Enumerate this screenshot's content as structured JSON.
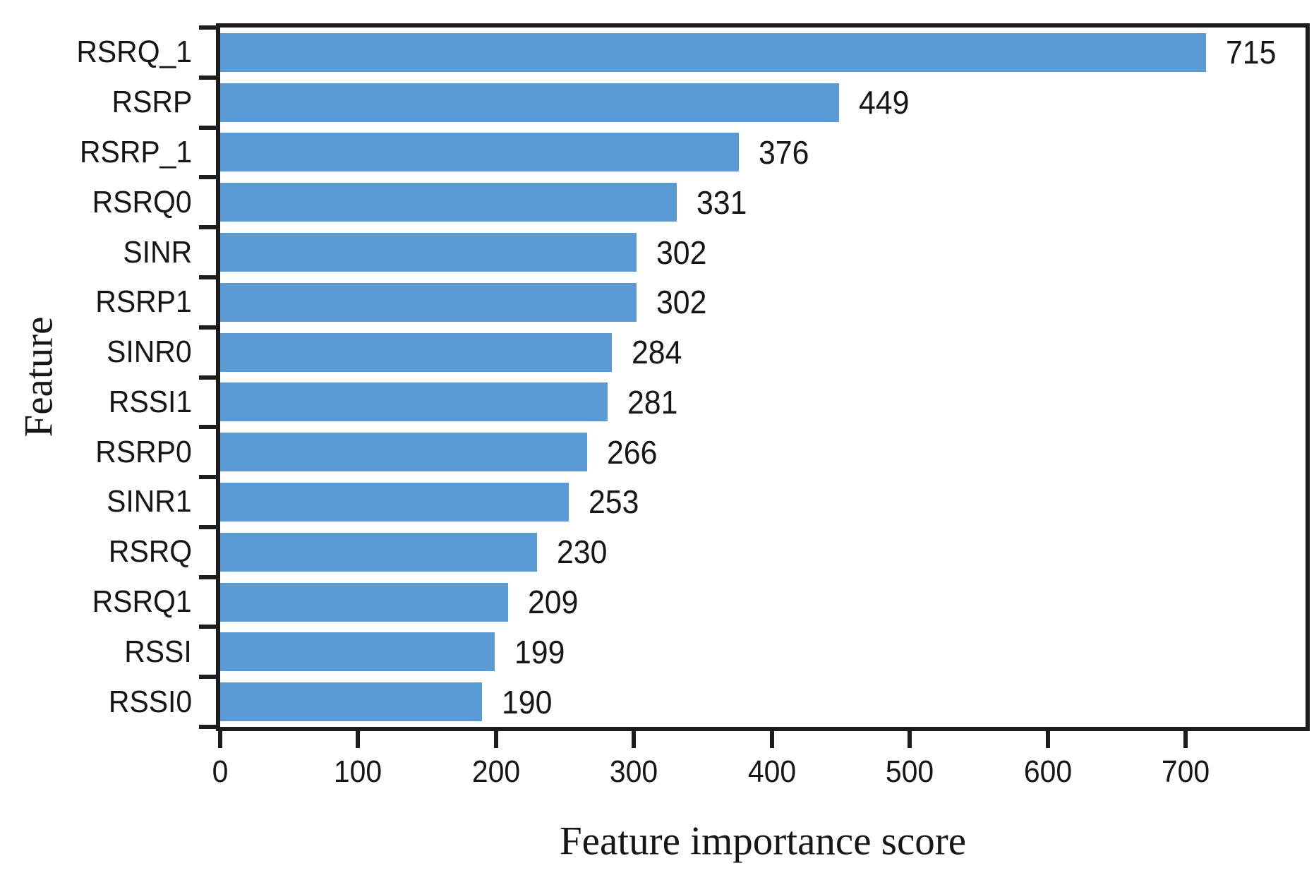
{
  "chart_data": {
    "type": "bar",
    "orientation": "horizontal",
    "title": "",
    "xlabel": "Feature importance score",
    "ylabel": "Feature",
    "categories": [
      "RSRQ_1",
      "RSRP",
      "RSRP_1",
      "RSRQ0",
      "SINR",
      "RSRP1",
      "SINR0",
      "RSSI1",
      "RSRP0",
      "SINR1",
      "RSRQ",
      "RSRQ1",
      "RSSI",
      "RSSI0"
    ],
    "values": [
      715,
      449,
      376,
      331,
      302,
      302,
      284,
      281,
      266,
      253,
      230,
      209,
      199,
      190
    ],
    "value_labels_shown": true,
    "xlim": [
      0,
      787
    ],
    "xticks": [
      0,
      100,
      200,
      300,
      400,
      500,
      600,
      700
    ],
    "grid": "off",
    "legend": "none",
    "bar_color": "#5B9BD5",
    "axis_color": "#1c1c1c",
    "text_color": "#161616",
    "plot_frame": "full-box"
  }
}
